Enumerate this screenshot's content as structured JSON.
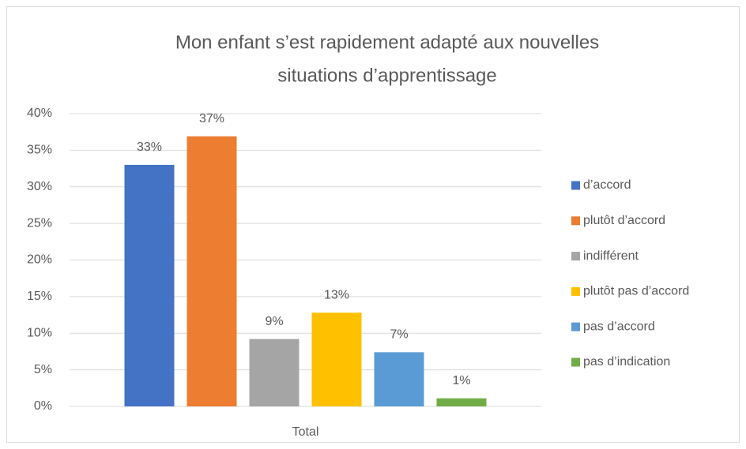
{
  "chart_data": {
    "type": "bar",
    "title": [
      "Mon enfant s’est rapidement adapté aux nouvelles",
      "situations d’apprentissage"
    ],
    "categories": [
      "Total"
    ],
    "series": [
      {
        "name": "d’accord",
        "color": "#4472c4",
        "values": [
          33
        ],
        "value_labels": [
          "33%"
        ]
      },
      {
        "name": "plutôt d’accord",
        "color": "#ed7d31",
        "values": [
          36.9
        ],
        "value_labels": [
          "37%"
        ]
      },
      {
        "name": "indifférent",
        "color": "#a5a5a5",
        "values": [
          9.2
        ],
        "value_labels": [
          "9%"
        ]
      },
      {
        "name": "plutôt pas d’accord",
        "color": "#ffc000",
        "values": [
          12.8
        ],
        "value_labels": [
          "13%"
        ]
      },
      {
        "name": "pas d’accord",
        "color": "#5b9bd5",
        "values": [
          7.4
        ],
        "value_labels": [
          "7%"
        ]
      },
      {
        "name": "pas d’indication",
        "color": "#70ad47",
        "values": [
          1.1
        ],
        "value_labels": [
          "1%"
        ]
      }
    ],
    "ylim": [
      0,
      40
    ],
    "yticks": [
      {
        "value": 0,
        "label": "0%"
      },
      {
        "value": 5,
        "label": "5%"
      },
      {
        "value": 10,
        "label": "10%"
      },
      {
        "value": 15,
        "label": "15%"
      },
      {
        "value": 20,
        "label": "20%"
      },
      {
        "value": 25,
        "label": "25%"
      },
      {
        "value": 30,
        "label": "30%"
      },
      {
        "value": 35,
        "label": "35%"
      },
      {
        "value": 40,
        "label": "40%"
      }
    ],
    "grid": true,
    "legend": "right"
  }
}
